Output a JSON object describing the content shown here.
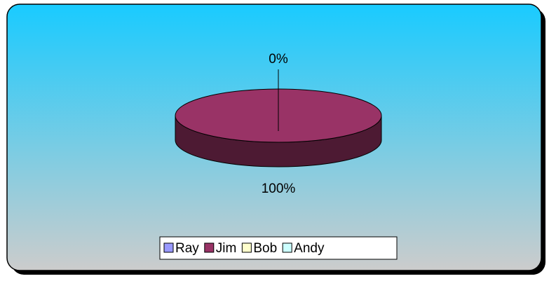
{
  "chart_data": {
    "type": "pie",
    "categories": [
      "Ray",
      "Jim",
      "Bob",
      "Andy"
    ],
    "values": [
      0,
      100,
      0,
      0
    ],
    "value_labels": [
      "0%",
      "100%",
      null,
      null
    ],
    "colors": [
      "#9999ff",
      "#993366",
      "#ffffcc",
      "#ccffff"
    ],
    "legend": "bottom"
  }
}
